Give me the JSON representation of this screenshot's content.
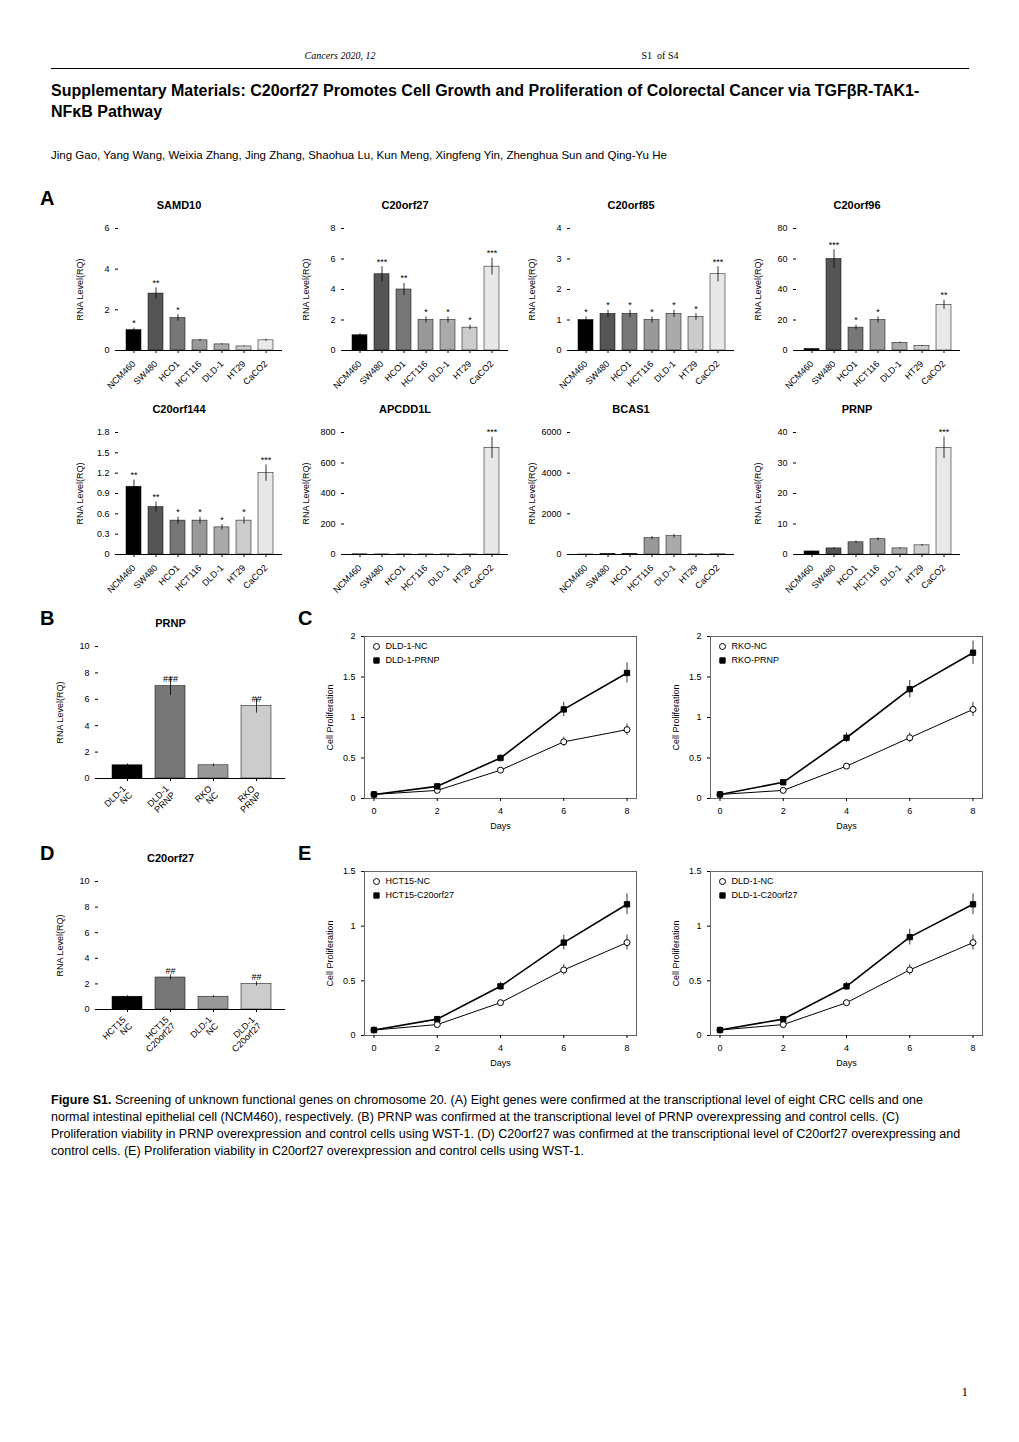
{
  "title": "Supplementary Materials: C20orf27 Promotes Cell Growth and Proliferation of Colorectal Cancer via TGFβR-TAK1-NFκB Pathway",
  "subtitle": "Jing Gao, Yang Wang, Weixia Zhang, Jing Zhang, Shaohua Lu, Kun Meng, Xingfeng Yin, Zhenghua Sun and Qing-Yu He",
  "annotations": [
    "Cancers 2020, 12",
    "S1  of S4",
    "A",
    "B",
    "C",
    "D",
    "E",
    "1"
  ],
  "caption": [
    "Figure S1.",
    " Screening of unknown functional genes on chromosome 20. (A) Eight genes were confirmed at the transcriptional level of eight CRC cells and one normal intestinal epithelial cell (NCM460), respectively. (B) PRNP was confirmed at the transcriptional level of PRNP overexpressing and control cells. (C) Proliferation viability in PRNP overexpression and control cells using WST-1. (D) C20orf27 was confirmed at the transcriptional level of C20orf27 overexpressing and control cells. (E) Proliferation viability in C20orf27 overexpression and control cells using WST-1."
  ],
  "chart_data": [
    {
      "type": "bar",
      "title": "SAMD10",
      "ylabel": "RNA Level(RQ)",
      "categories": [
        "NCM460",
        "SW480",
        "HCO1",
        "HCT116",
        "DLD-1",
        "HT29",
        "CaCO2"
      ],
      "values": [
        1.0,
        2.8,
        1.6,
        0.5,
        0.3,
        0.2,
        0.5
      ],
      "errors": [
        0.1,
        0.28,
        0.16,
        0.05,
        0.03,
        0.02,
        0.05
      ],
      "colors": [
        "#000000",
        "#555555",
        "#777777",
        "#999999",
        "#aaaaaa",
        "#cccccc",
        "#e8e8e8"
      ],
      "ylim": [
        0,
        6
      ],
      "yticks": [
        0,
        2,
        4,
        6
      ],
      "annotations": [
        {
          "category": "NCM460",
          "text": "*"
        },
        {
          "category": "SW480",
          "text": "**"
        },
        {
          "category": "HCO1",
          "text": "*"
        }
      ]
    },
    {
      "type": "bar",
      "title": "C20orf27",
      "ylabel": "RNA Level(RQ)",
      "categories": [
        "NCM460",
        "SW480",
        "HCO1",
        "HCT116",
        "DLD-1",
        "HT29",
        "CaCO2"
      ],
      "values": [
        1.0,
        5.0,
        4.0,
        2.0,
        2.0,
        1.5,
        5.5
      ],
      "errors": [
        0.1,
        0.5,
        0.4,
        0.2,
        0.2,
        0.15,
        0.55
      ],
      "colors": [
        "#000000",
        "#555555",
        "#777777",
        "#999999",
        "#aaaaaa",
        "#cccccc",
        "#e8e8e8"
      ],
      "ylim": [
        0,
        8
      ],
      "yticks": [
        0,
        2,
        4,
        6,
        8
      ],
      "annotations": [
        {
          "category": "SW480",
          "text": "***"
        },
        {
          "category": "HCO1",
          "text": "**"
        },
        {
          "category": "HCT116",
          "text": "*"
        },
        {
          "category": "DLD-1",
          "text": "*"
        },
        {
          "category": "HT29",
          "text": "*"
        },
        {
          "category": "CaCO2",
          "text": "***"
        }
      ]
    },
    {
      "type": "bar",
      "title": "C20orf85",
      "ylabel": "RNA Level(RQ)",
      "categories": [
        "NCM460",
        "SW480",
        "HCO1",
        "HCT116",
        "DLD-1",
        "HT29",
        "CaCO2"
      ],
      "values": [
        1.0,
        1.2,
        1.2,
        1.0,
        1.2,
        1.1,
        2.5
      ],
      "errors": [
        0.1,
        0.12,
        0.12,
        0.1,
        0.12,
        0.11,
        0.25
      ],
      "colors": [
        "#000000",
        "#555555",
        "#777777",
        "#999999",
        "#aaaaaa",
        "#cccccc",
        "#e8e8e8"
      ],
      "ylim": [
        0,
        4
      ],
      "yticks": [
        0,
        1,
        2,
        3,
        4
      ],
      "annotations": [
        {
          "category": "NCM460",
          "text": "*"
        },
        {
          "category": "SW480",
          "text": "*"
        },
        {
          "category": "HCO1",
          "text": "*"
        },
        {
          "category": "HCT116",
          "text": "*"
        },
        {
          "category": "DLD-1",
          "text": "*"
        },
        {
          "category": "HT29",
          "text": "*"
        },
        {
          "category": "CaCO2",
          "text": "***"
        }
      ]
    },
    {
      "type": "bar",
      "title": "C20orf96",
      "ylabel": "RNA Level(RQ)",
      "categories": [
        "NCM460",
        "SW480",
        "HCO1",
        "HCT116",
        "DLD-1",
        "HT29",
        "CaCO2"
      ],
      "values": [
        1.0,
        60.0,
        15.0,
        20.0,
        5.0,
        3.0,
        30.0
      ],
      "errors": [
        0.1,
        6,
        1.5,
        2,
        0.5,
        0.3,
        3
      ],
      "colors": [
        "#000000",
        "#555555",
        "#777777",
        "#999999",
        "#aaaaaa",
        "#cccccc",
        "#e8e8e8"
      ],
      "ylim": [
        0,
        80
      ],
      "yticks": [
        0,
        20,
        40,
        60,
        80
      ],
      "annotations": [
        {
          "category": "SW480",
          "text": "***"
        },
        {
          "category": "HCO1",
          "text": "*"
        },
        {
          "category": "HCT116",
          "text": "*"
        },
        {
          "category": "CaCO2",
          "text": "**"
        }
      ]
    },
    {
      "type": "bar",
      "title": "C20orf144",
      "ylabel": "RNA Level(RQ)",
      "categories": [
        "NCM460",
        "SW480",
        "HCO1",
        "HCT116",
        "DLD-1",
        "HT29",
        "CaCO2"
      ],
      "values": [
        1.0,
        0.7,
        0.5,
        0.5,
        0.4,
        0.5,
        1.2
      ],
      "errors": [
        0.1,
        0.07,
        0.05,
        0.05,
        0.04,
        0.05,
        0.12
      ],
      "colors": [
        "#000000",
        "#555555",
        "#777777",
        "#999999",
        "#aaaaaa",
        "#cccccc",
        "#e8e8e8"
      ],
      "ylim": [
        0,
        1.8
      ],
      "yticks": [
        0,
        0.3,
        0.6,
        0.9,
        1.2,
        1.5,
        1.8
      ],
      "annotations": [
        {
          "category": "NCM460",
          "text": "**"
        },
        {
          "category": "SW480",
          "text": "**"
        },
        {
          "category": "HCO1",
          "text": "*"
        },
        {
          "category": "HCT116",
          "text": "*"
        },
        {
          "category": "DLD-1",
          "text": "*"
        },
        {
          "category": "HT29",
          "text": "*"
        },
        {
          "category": "CaCO2",
          "text": "***"
        }
      ]
    },
    {
      "type": "bar",
      "title": "APCDD1L",
      "ylabel": "RNA Level(RQ)",
      "categories": [
        "NCM460",
        "SW480",
        "HCO1",
        "HCT116",
        "DLD-1",
        "HT29",
        "CaCO2"
      ],
      "values": [
        1.0,
        0.5,
        0.5,
        0.5,
        0.5,
        0.5,
        700.0
      ],
      "errors": [
        0.1,
        0.05,
        0.05,
        0.05,
        0.05,
        0.05,
        70
      ],
      "colors": [
        "#000000",
        "#555555",
        "#777777",
        "#999999",
        "#aaaaaa",
        "#cccccc",
        "#e8e8e8"
      ],
      "ylim": [
        0,
        800
      ],
      "yticks": [
        0,
        200,
        400,
        600,
        800
      ],
      "annotations": [
        {
          "category": "CaCO2",
          "text": "***"
        }
      ]
    },
    {
      "type": "bar",
      "title": "BCAS1",
      "ylabel": "RNA Level(RQ)",
      "categories": [
        "NCM460",
        "SW480",
        "HCO1",
        "HCT116",
        "DLD-1",
        "HT29",
        "CaCO2"
      ],
      "values": [
        1.0,
        20.0,
        30.0,
        800.0,
        900.0,
        5.0,
        10.0
      ],
      "errors": [
        0.1,
        2,
        3,
        80,
        90,
        0.5,
        1
      ],
      "colors": [
        "#000000",
        "#555555",
        "#777777",
        "#999999",
        "#aaaaaa",
        "#cccccc",
        "#e8e8e8"
      ],
      "ylim": [
        0,
        6000
      ],
      "yticks": [
        0,
        2000,
        4000,
        6000
      ],
      "annotations": []
    },
    {
      "type": "bar",
      "title": "PRNP",
      "ylabel": "RNA Level(RQ)",
      "categories": [
        "NCM460",
        "SW480",
        "HCO1",
        "HCT116",
        "DLD-1",
        "HT29",
        "CaCO2"
      ],
      "values": [
        1.0,
        2.0,
        4.0,
        5.0,
        2.0,
        3.0,
        35.0
      ],
      "errors": [
        0.1,
        0.2,
        0.4,
        0.5,
        0.2,
        0.3,
        3.5
      ],
      "colors": [
        "#000000",
        "#555555",
        "#777777",
        "#999999",
        "#aaaaaa",
        "#cccccc",
        "#e8e8e8"
      ],
      "ylim": [
        0,
        40
      ],
      "yticks": [
        0,
        10,
        20,
        30,
        40
      ],
      "annotations": [
        {
          "category": "CaCO2",
          "text": "***"
        }
      ]
    },
    {
      "type": "bar",
      "title": "PRNP",
      "ylabel": "RNA Level(RQ)",
      "categories": [
        "DLD-1\nNC",
        "DLD-1\nPRNP",
        "RKO\nNC",
        "RKO\nPRNP"
      ],
      "values": [
        1.0,
        7.0,
        1.0,
        5.5
      ],
      "errors": [
        0.1,
        0.7,
        0.1,
        0.55
      ],
      "colors": [
        "#000000",
        "#777777",
        "#999999",
        "#cccccc"
      ],
      "ylim": [
        0,
        10
      ],
      "yticks": [
        0,
        2,
        4,
        6,
        8,
        10
      ],
      "annotations": [
        {
          "category": "DLD-1\nPRNP",
          "y": 7.3,
          "text": "###"
        },
        {
          "category": "RKO\nPRNP",
          "y": 5.8,
          "text": "##"
        }
      ]
    },
    {
      "type": "line",
      "xlabel": "Days",
      "ylabel": "Cell Proliferation",
      "x": [
        0,
        2,
        4,
        6,
        8
      ],
      "xlim": [
        -0.3,
        8.3
      ],
      "xticks": [
        0,
        2,
        4,
        6,
        8
      ],
      "ylim": [
        0,
        2
      ],
      "yticks": [
        0,
        0.5,
        1,
        1.5,
        2
      ],
      "legend": "upper left",
      "series": [
        {
          "name": "DLD-1-NC",
          "color": "#000000",
          "marker": "circle",
          "values": [
            0.05,
            0.1,
            0.35,
            0.7,
            0.85
          ],
          "errors": [
            0.004,
            0.008,
            0.028,
            0.056,
            0.068
          ]
        },
        {
          "name": "DLD-1-PRNP",
          "color": "#000000",
          "marker": "square",
          "values": [
            0.05,
            0.15,
            0.5,
            1.1,
            1.55
          ],
          "errors": [
            0.004,
            0.012,
            0.04,
            0.088,
            0.124
          ]
        }
      ]
    },
    {
      "type": "line",
      "xlabel": "Days",
      "ylabel": "Cell Proliferation",
      "x": [
        0,
        2,
        4,
        6,
        8
      ],
      "xlim": [
        -0.3,
        8.3
      ],
      "xticks": [
        0,
        2,
        4,
        6,
        8
      ],
      "ylim": [
        0,
        2
      ],
      "yticks": [
        0,
        0.5,
        1,
        1.5,
        2
      ],
      "legend": "upper left",
      "series": [
        {
          "name": "RKO-NC",
          "color": "#000000",
          "marker": "circle",
          "values": [
            0.05,
            0.1,
            0.4,
            0.75,
            1.1
          ],
          "errors": [
            0.004,
            0.008,
            0.032,
            0.06,
            0.088
          ]
        },
        {
          "name": "RKO-PRNP",
          "color": "#000000",
          "marker": "square",
          "values": [
            0.05,
            0.2,
            0.75,
            1.35,
            1.8
          ],
          "errors": [
            0.004,
            0.016,
            0.06,
            0.108,
            0.144
          ]
        }
      ]
    },
    {
      "type": "bar",
      "title": "C20orf27",
      "ylabel": "RNA Level(RQ)",
      "categories": [
        "HCT15\nNC",
        "HCT15\nC20orf27",
        "DLD-1\nNC",
        "DLD-1\nC20orf27"
      ],
      "values": [
        1.0,
        2.5,
        1.0,
        2.0
      ],
      "errors": [
        0.08,
        0.2,
        0.08,
        0.16
      ],
      "colors": [
        "#000000",
        "#777777",
        "#999999",
        "#cccccc"
      ],
      "ylim": [
        0,
        10
      ],
      "yticks": [
        0,
        2,
        4,
        6,
        8,
        10
      ],
      "annotations": [
        {
          "category": "HCT15\nC20orf27",
          "y": 2.8,
          "text": "##"
        },
        {
          "category": "DLD-1\nC20orf27",
          "y": 2.3,
          "text": "##"
        }
      ]
    },
    {
      "type": "line",
      "xlabel": "Days",
      "ylabel": "Cell Proliferation",
      "x": [
        0,
        2,
        4,
        6,
        8
      ],
      "xlim": [
        -0.3,
        8.3
      ],
      "xticks": [
        0,
        2,
        4,
        6,
        8
      ],
      "ylim": [
        0,
        1.5
      ],
      "yticks": [
        0,
        0.5,
        1,
        1.5
      ],
      "legend": "upper left",
      "series": [
        {
          "name": "HCT15-NC",
          "color": "#000000",
          "marker": "circle",
          "values": [
            0.05,
            0.1,
            0.3,
            0.6,
            0.85
          ],
          "errors": [
            0.004,
            0.008,
            0.024,
            0.048,
            0.068
          ]
        },
        {
          "name": "HCT15-C20orf27",
          "color": "#000000",
          "marker": "square",
          "values": [
            0.05,
            0.15,
            0.45,
            0.85,
            1.2
          ],
          "errors": [
            0.004,
            0.012,
            0.036,
            0.068,
            0.096
          ]
        }
      ]
    },
    {
      "type": "line",
      "xlabel": "Days",
      "ylabel": "Cell Proliferation",
      "x": [
        0,
        2,
        4,
        6,
        8
      ],
      "xlim": [
        -0.3,
        8.3
      ],
      "xticks": [
        0,
        2,
        4,
        6,
        8
      ],
      "ylim": [
        0,
        1.5
      ],
      "yticks": [
        0,
        0.5,
        1,
        1.5
      ],
      "legend": "upper left",
      "series": [
        {
          "name": "DLD-1-NC",
          "color": "#000000",
          "marker": "circle",
          "values": [
            0.05,
            0.1,
            0.3,
            0.6,
            0.85
          ],
          "errors": [
            0.004,
            0.008,
            0.024,
            0.048,
            0.068
          ]
        },
        {
          "name": "DLD-1-C20orf27",
          "color": "#000000",
          "marker": "square",
          "values": [
            0.05,
            0.15,
            0.45,
            0.9,
            1.2
          ],
          "errors": [
            0.004,
            0.012,
            0.036,
            0.072,
            0.096
          ]
        }
      ]
    }
  ]
}
